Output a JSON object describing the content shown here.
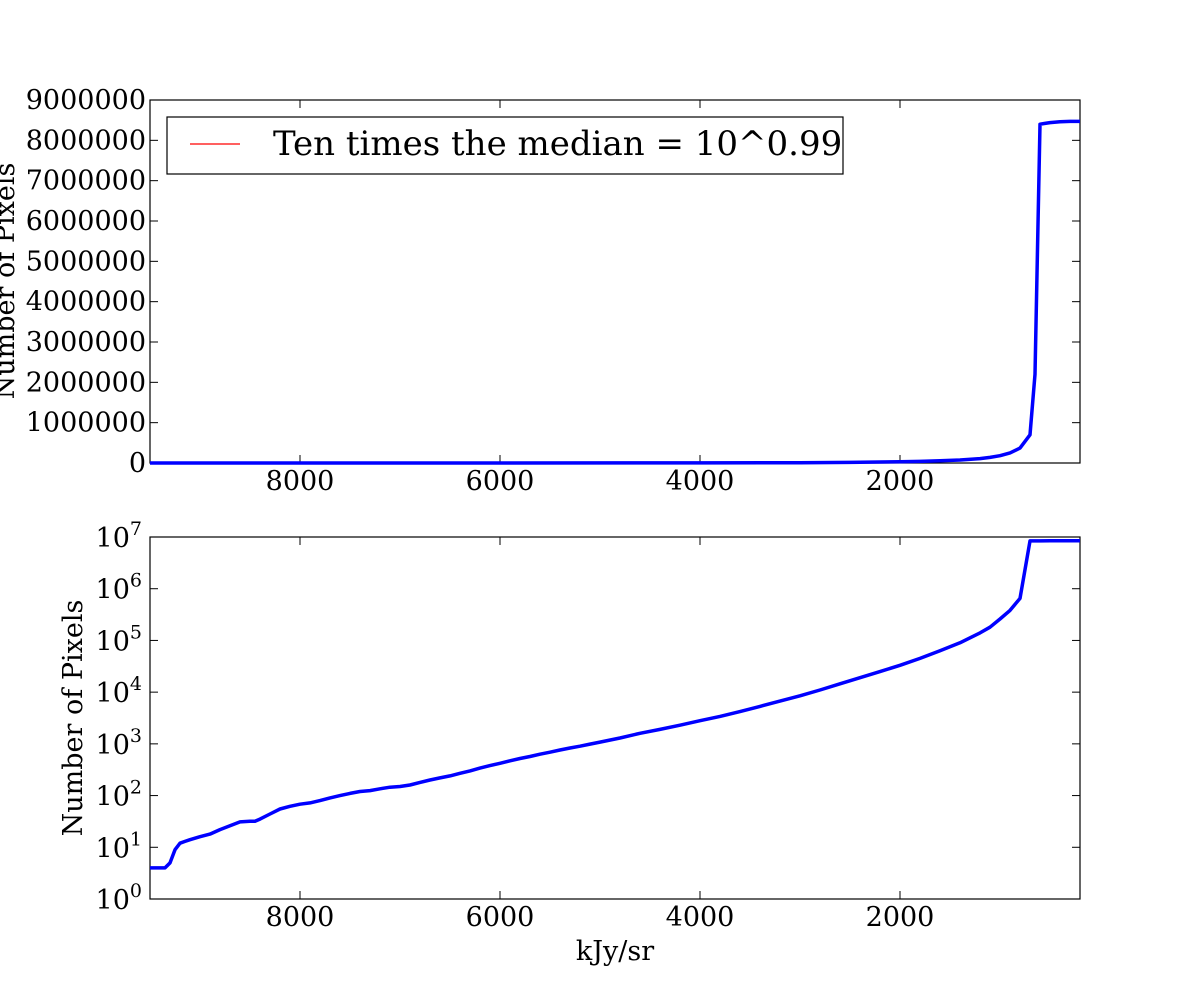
{
  "chart_data": [
    {
      "type": "line",
      "title": "",
      "xlabel": "",
      "ylabel": "Number of Pixels",
      "x_inverted": true,
      "xlim": [
        9500,
        200
      ],
      "ylim": [
        0,
        9000000
      ],
      "yscale": "linear",
      "grid": false,
      "legend": {
        "placement": "top-left",
        "entries": [
          {
            "label": "Ten times the median = 10^0.99",
            "color": "#ff0000"
          }
        ]
      },
      "xticks": [
        {
          "value": 8000,
          "label": "8000"
        },
        {
          "value": 6000,
          "label": "6000"
        },
        {
          "value": 4000,
          "label": "4000"
        },
        {
          "value": 2000,
          "label": "2000"
        }
      ],
      "yticks": [
        {
          "value": 0,
          "label": "0"
        },
        {
          "value": 1000000,
          "label": "1000000"
        },
        {
          "value": 2000000,
          "label": "2000000"
        },
        {
          "value": 3000000,
          "label": "3000000"
        },
        {
          "value": 4000000,
          "label": "4000000"
        },
        {
          "value": 5000000,
          "label": "5000000"
        },
        {
          "value": 6000000,
          "label": "6000000"
        },
        {
          "value": 7000000,
          "label": "7000000"
        },
        {
          "value": 8000000,
          "label": "8000000"
        },
        {
          "value": 9000000,
          "label": "9000000"
        }
      ],
      "series": [
        {
          "color": "#0000ff",
          "x": [
            9500,
            8000,
            6000,
            4000,
            3000,
            2500,
            2000,
            1800,
            1600,
            1400,
            1200,
            1100,
            1000,
            900,
            800,
            700,
            650,
            600,
            550,
            500,
            400,
            300,
            200
          ],
          "y": [
            4,
            60,
            500,
            2500,
            8000,
            15000,
            30000,
            40000,
            55000,
            75000,
            110000,
            140000,
            180000,
            250000,
            370000,
            700000,
            2200000,
            8400000,
            8420000,
            8440000,
            8460000,
            8470000,
            8470000
          ]
        }
      ]
    },
    {
      "type": "line",
      "title": "",
      "xlabel": "kJy/sr",
      "ylabel": "Number of Pixels",
      "x_inverted": true,
      "xlim": [
        9500,
        200
      ],
      "ylim": [
        1,
        10000000
      ],
      "yscale": "log",
      "grid": false,
      "xticks": [
        {
          "value": 8000,
          "label": "8000"
        },
        {
          "value": 6000,
          "label": "6000"
        },
        {
          "value": 4000,
          "label": "4000"
        },
        {
          "value": 2000,
          "label": "2000"
        }
      ],
      "yticks": [
        {
          "value": 1,
          "base": "10",
          "exp": "0"
        },
        {
          "value": 10,
          "base": "10",
          "exp": "1"
        },
        {
          "value": 100,
          "base": "10",
          "exp": "2"
        },
        {
          "value": 1000,
          "base": "10",
          "exp": "3"
        },
        {
          "value": 10000,
          "base": "10",
          "exp": "4"
        },
        {
          "value": 100000,
          "base": "10",
          "exp": "5"
        },
        {
          "value": 1000000,
          "base": "10",
          "exp": "6"
        },
        {
          "value": 10000000,
          "base": "10",
          "exp": "7"
        }
      ],
      "series": [
        {
          "color": "#0000ff",
          "x": [
            9500,
            9350,
            9300,
            9250,
            9200,
            9150,
            9100,
            9000,
            8900,
            8800,
            8700,
            8600,
            8500,
            8450,
            8400,
            8300,
            8200,
            8100,
            8000,
            7900,
            7800,
            7700,
            7600,
            7500,
            7400,
            7300,
            7200,
            7100,
            7000,
            6900,
            6800,
            6700,
            6600,
            6500,
            6400,
            6300,
            6200,
            6100,
            6000,
            5900,
            5800,
            5700,
            5600,
            5500,
            5400,
            5300,
            5200,
            5100,
            5000,
            4800,
            4600,
            4400,
            4200,
            4000,
            3800,
            3600,
            3400,
            3200,
            3000,
            2800,
            2600,
            2400,
            2200,
            2000,
            1800,
            1600,
            1400,
            1200,
            1100,
            1000,
            900,
            800,
            700,
            600,
            500,
            400,
            300,
            200
          ],
          "y": [
            4,
            4,
            5,
            9,
            12,
            13,
            14,
            16,
            18,
            22,
            26,
            31,
            32,
            32,
            35,
            44,
            55,
            62,
            68,
            72,
            80,
            90,
            100,
            110,
            120,
            125,
            135,
            145,
            150,
            160,
            180,
            200,
            220,
            240,
            270,
            300,
            340,
            380,
            420,
            470,
            520,
            570,
            630,
            690,
            760,
            830,
            900,
            990,
            1080,
            1300,
            1600,
            1900,
            2300,
            2800,
            3400,
            4200,
            5300,
            6700,
            8500,
            11000,
            14500,
            19000,
            25000,
            33000,
            45000,
            63000,
            90000,
            140000,
            180000,
            260000,
            380000,
            650000,
            8400000,
            8420000,
            8450000,
            8460000,
            8470000,
            8470000
          ]
        }
      ]
    }
  ]
}
